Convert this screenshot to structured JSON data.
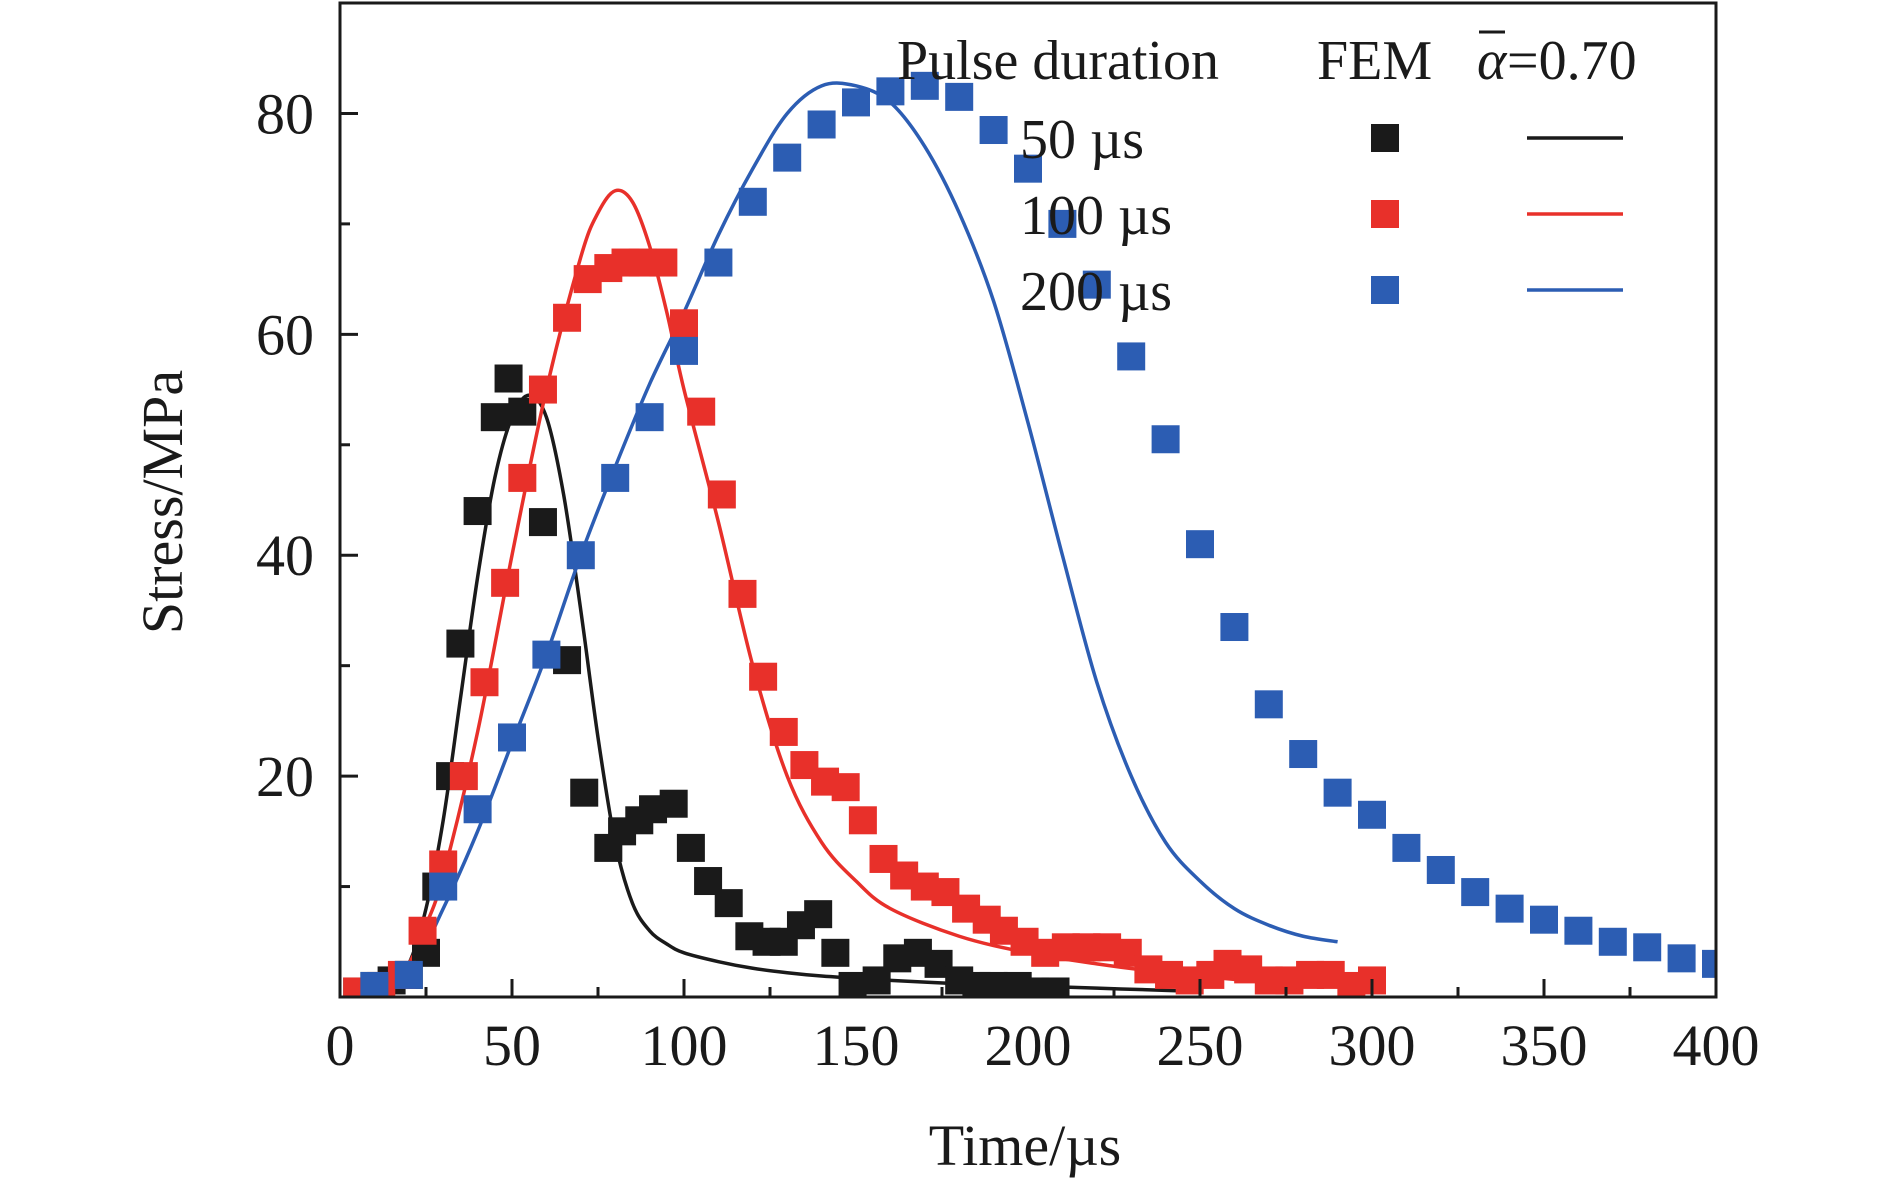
{
  "chart_data": {
    "type": "line",
    "xlabel": "Time/µs",
    "ylabel": "Stress/MPa",
    "xlim": [
      0,
      400
    ],
    "ylim": [
      0,
      90
    ],
    "xticks": [
      "0",
      "50",
      "100",
      "150",
      "200",
      "250",
      "300",
      "350",
      "400"
    ],
    "xtick_values": [
      0,
      50,
      100,
      150,
      200,
      250,
      300,
      350,
      400
    ],
    "yticks": [
      "20",
      "40",
      "60",
      "80"
    ],
    "ytick_values": [
      20,
      40,
      60,
      80
    ],
    "grid": false,
    "legend": {
      "placement": "top-right",
      "header": {
        "pulse": "Pulse duration",
        "fem": "FEM",
        "alpha": "α",
        "alpha_value": "=0.70"
      },
      "entries": [
        "50 µs",
        "100 µs",
        "200 µs"
      ]
    },
    "colors": {
      "50": "#1a1a1a",
      "100": "#e8302a",
      "200": "#2c5db3"
    },
    "series": [
      {
        "name": "50 µs",
        "color": "#1a1a1a",
        "points_x": [
          5,
          10,
          15,
          20,
          25,
          28,
          32,
          35,
          40,
          45,
          49,
          53,
          59,
          66,
          71,
          78,
          82,
          87,
          91,
          97,
          102,
          107,
          113,
          119,
          124,
          129,
          134,
          139,
          144,
          149,
          156,
          162,
          168,
          174,
          180,
          185,
          190,
          197,
          202,
          208
        ],
        "points_y": [
          0.5,
          1,
          1.5,
          2,
          4,
          10,
          20,
          32,
          44,
          52.5,
          56,
          53,
          43,
          30.5,
          18.5,
          13.5,
          15,
          16,
          17,
          17.5,
          13.5,
          10.5,
          8.5,
          5.5,
          5,
          5,
          6.5,
          7.5,
          4,
          1,
          1.5,
          3.5,
          4,
          3,
          1.5,
          1,
          1,
          1,
          0.5,
          0.5
        ],
        "fem_x": [
          5,
          15,
          20,
          25,
          30,
          35,
          40,
          45,
          50,
          55,
          60,
          65,
          70,
          75,
          80,
          85,
          90,
          95,
          100,
          110,
          120,
          130,
          140,
          150,
          160,
          180,
          200,
          220,
          240,
          250
        ],
        "fem_y": [
          0.5,
          1.5,
          3,
          8,
          16,
          27,
          38,
          47,
          52.5,
          54.5,
          52.5,
          45.5,
          35,
          23.5,
          14,
          8.5,
          6,
          4.8,
          4,
          3.2,
          2.6,
          2.2,
          1.9,
          1.7,
          1.5,
          1.2,
          1,
          0.8,
          0.6,
          0.5
        ]
      },
      {
        "name": "100 µs",
        "color": "#e8302a",
        "points_x": [
          5,
          12,
          18,
          24,
          30,
          36,
          42,
          48,
          53,
          59,
          66,
          72,
          78,
          83,
          88,
          94,
          100,
          105,
          111,
          117,
          123,
          129,
          135,
          141,
          147,
          152,
          158,
          164,
          170,
          176,
          182,
          188,
          193,
          199,
          205,
          211,
          217,
          223,
          229,
          235,
          241,
          247,
          253,
          258,
          264,
          270,
          276,
          282,
          288,
          294,
          300
        ],
        "points_y": [
          0.5,
          1,
          2,
          6,
          12,
          20,
          28.5,
          37.5,
          47,
          55,
          61.5,
          65,
          66,
          66.5,
          66.5,
          66.5,
          61,
          53,
          45.5,
          36.5,
          29,
          24,
          21,
          19.5,
          19,
          16,
          12.5,
          11,
          10,
          9.5,
          8,
          7,
          6,
          5,
          4,
          4.5,
          4.5,
          4.5,
          4,
          2.5,
          2,
          1.5,
          2,
          3,
          2.5,
          1.5,
          1.5,
          2,
          2,
          1,
          1.5
        ]
      },
      {
        "name": "200 µs",
        "color": "#2c5db3",
        "points_x": [
          10,
          20,
          30,
          40,
          50,
          60,
          70,
          80,
          90,
          100,
          110,
          120,
          130,
          140,
          150,
          160,
          170,
          180,
          190,
          200,
          210,
          220,
          230,
          240,
          250,
          260,
          270,
          280,
          290,
          300,
          310,
          320,
          330,
          340,
          350,
          360,
          370,
          380,
          390,
          400
        ],
        "points_y": [
          1,
          2,
          10,
          17,
          23.5,
          31,
          40,
          47,
          52.5,
          58.5,
          66.5,
          72,
          76,
          79,
          81,
          82,
          82.5,
          81.5,
          78.5,
          75,
          70,
          64.5,
          58,
          50.5,
          41,
          33.5,
          26.5,
          22,
          18.5,
          16.5,
          13.5,
          11.5,
          9.5,
          8,
          7,
          6,
          5,
          4.5,
          3.5,
          3
        ]
      }
    ]
  }
}
